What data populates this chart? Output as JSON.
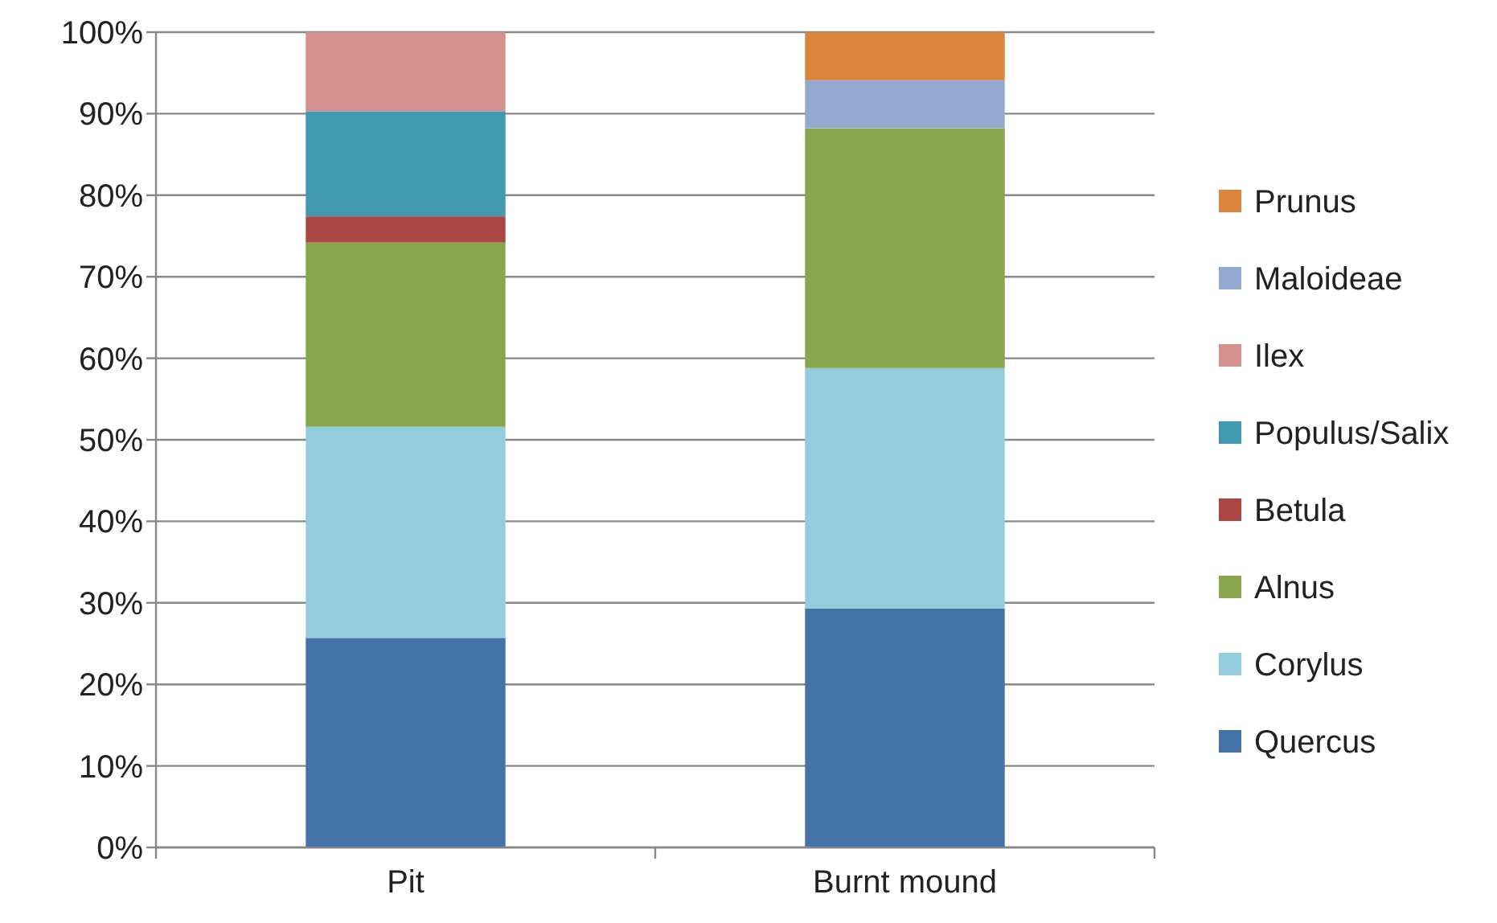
{
  "chart_data": {
    "type": "bar",
    "stacked": true,
    "categories": [
      "Pit",
      "Burnt mound"
    ],
    "series": [
      {
        "name": "Quercus",
        "color": "#4572a7",
        "values": [
          25.7,
          29.3
        ]
      },
      {
        "name": "Corylus",
        "color": "#93cddd",
        "values": [
          25.9,
          29.5
        ]
      },
      {
        "name": "Alnus",
        "color": "#89a54e",
        "values": [
          22.6,
          29.4
        ]
      },
      {
        "name": "Betula",
        "color": "#aa4643",
        "values": [
          3.2,
          0
        ]
      },
      {
        "name": "Populus/Salix",
        "color": "#4198af",
        "values": [
          12.9,
          0
        ]
      },
      {
        "name": "Ilex",
        "color": "#d49190",
        "values": [
          9.7,
          0
        ]
      },
      {
        "name": "Maloideae",
        "color": "#93a9cf",
        "values": [
          0,
          5.9
        ]
      },
      {
        "name": "Prunus",
        "color": "#db843d",
        "values": [
          0,
          5.9
        ]
      }
    ],
    "ylim": [
      0,
      100
    ],
    "yticks": [
      {
        "value": 0,
        "label": "0%"
      },
      {
        "value": 10,
        "label": "10%"
      },
      {
        "value": 20,
        "label": "20%"
      },
      {
        "value": 30,
        "label": "30%"
      },
      {
        "value": 40,
        "label": "40%"
      },
      {
        "value": 50,
        "label": "50%"
      },
      {
        "value": 60,
        "label": "60%"
      },
      {
        "value": 70,
        "label": "70%"
      },
      {
        "value": 80,
        "label": "80%"
      },
      {
        "value": 90,
        "label": "90%"
      },
      {
        "value": 100,
        "label": "100%"
      }
    ],
    "grid": "y",
    "legend": "right"
  }
}
